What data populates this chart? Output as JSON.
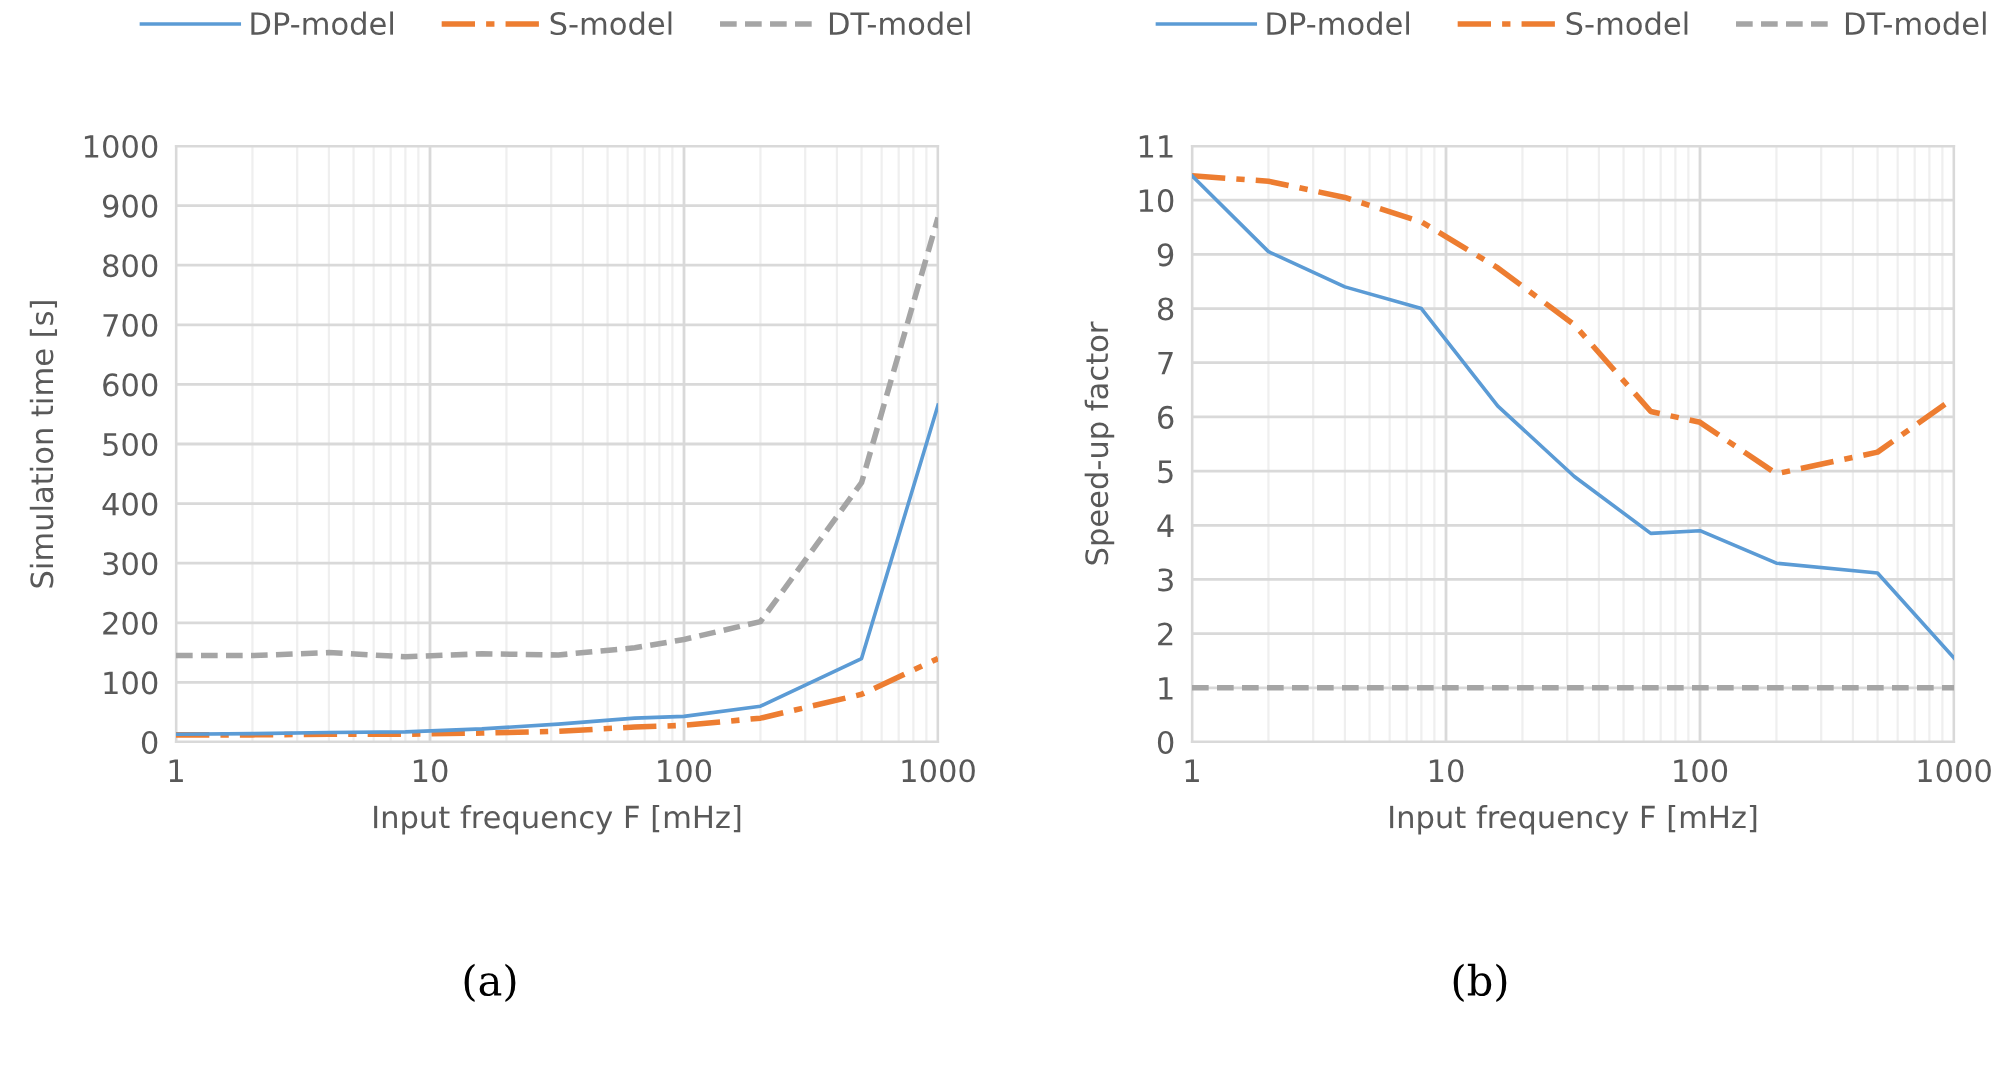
{
  "chart_data": [
    {
      "type": "line",
      "xlabel": "Input frequency F [mHz]",
      "ylabel": "Simulation time [s]",
      "annotations": [
        "(a)"
      ],
      "log": "x",
      "grid": true,
      "legend": "top",
      "xlim": [
        1,
        1000
      ],
      "xticks": [
        1,
        10,
        100,
        1000
      ],
      "ylim": [
        0,
        1000
      ],
      "yticks": [
        0,
        100,
        200,
        300,
        400,
        500,
        600,
        700,
        800,
        900,
        1000
      ],
      "x": [
        1,
        2,
        4,
        8,
        16,
        32,
        64,
        100,
        200,
        500,
        1000
      ],
      "series": [
        {
          "name": "DP-model",
          "color": "#5b9bd5",
          "line_style": "solid",
          "values": [
            13,
            14,
            16,
            17,
            22,
            30,
            40,
            43,
            60,
            140,
            565
          ]
        },
        {
          "name": "S-model",
          "color": "#ed7d31",
          "line_style": "dashdot",
          "values": [
            12,
            12,
            13,
            13,
            15,
            18,
            25,
            28,
            40,
            80,
            140
          ]
        },
        {
          "name": "DT-model",
          "color": "#a5a5a5",
          "line_style": "dashed",
          "values": [
            145,
            145,
            150,
            143,
            148,
            146,
            158,
            172,
            202,
            435,
            880
          ]
        }
      ]
    },
    {
      "type": "line",
      "xlabel": "Input frequency F [mHz]",
      "ylabel": "Speed-up factor",
      "annotations": [
        "(b)"
      ],
      "log": "x",
      "grid": true,
      "legend": "top",
      "xlim": [
        1,
        1000
      ],
      "xticks": [
        1,
        10,
        100,
        1000
      ],
      "ylim": [
        0,
        11
      ],
      "yticks": [
        0,
        1,
        2,
        3,
        4,
        5,
        6,
        7,
        8,
        9,
        10,
        11
      ],
      "x": [
        1,
        2,
        4,
        8,
        16,
        32,
        64,
        100,
        200,
        500,
        1000
      ],
      "series": [
        {
          "name": "DP-model",
          "color": "#5b9bd5",
          "line_style": "solid",
          "values": [
            10.45,
            9.05,
            8.4,
            8.0,
            6.2,
            4.9,
            3.85,
            3.9,
            3.3,
            3.12,
            1.55
          ]
        },
        {
          "name": "S-model",
          "color": "#ed7d31",
          "line_style": "dashdot",
          "values": [
            10.45,
            10.35,
            10.05,
            9.6,
            8.75,
            7.7,
            6.1,
            5.9,
            4.95,
            5.35,
            6.35
          ]
        },
        {
          "name": "DT-model",
          "color": "#a5a5a5",
          "line_style": "dashed",
          "values": [
            1,
            1,
            1,
            1,
            1,
            1,
            1,
            1,
            1,
            1,
            1
          ]
        }
      ]
    }
  ]
}
